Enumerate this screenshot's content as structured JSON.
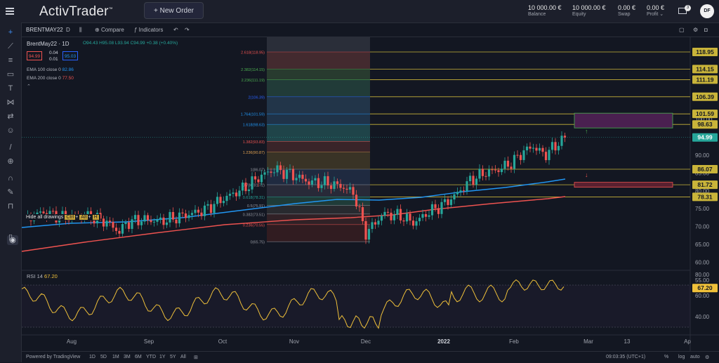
{
  "header": {
    "brand": "ActivTrader",
    "brand_tm": "™",
    "new_order": "+ New Order",
    "balance_value": "10 000.00 €",
    "balance_label": "Balance",
    "equity_value": "10 000.00 €",
    "equity_label": "Equity",
    "swap_value": "0.00 €",
    "swap_label": "Swap",
    "profit_value": "0.00 €",
    "profit_label": "Profit",
    "profit_caret": "⌄",
    "notif_count": "3",
    "avatar_initials": "DF"
  },
  "chartbar": {
    "symbol": "BRENTMAY22",
    "interval": "D",
    "compare": "Compare",
    "indicators": "Indicators"
  },
  "legend": {
    "title": "BrentMay22 · 1D",
    "ohlc": "O94.43 H95.08 L93.94 C94.99 +0.38 (+0.40%)",
    "sell_price": "94.99",
    "spread_top": "0.04",
    "spread_bottom": "0.01",
    "buy_price": "95.03",
    "ema100_label": "EMA 100 close 0",
    "ema100_value": "82.86",
    "ema200_label": "EMA 200 close 0",
    "ema200_value": "77.50",
    "ohlc_colors": {
      "up": "#26a69a",
      "down": "#ef5350",
      "neutral": "#b2b5be"
    }
  },
  "tooltip": {
    "text": "Hide all drawings",
    "keys": [
      "Ctrl",
      "Alt",
      "H"
    ]
  },
  "price_labels": [
    "118.95",
    "114.15",
    "111.19",
    "106.39",
    "101.59",
    "98.63",
    "94.99",
    "86.07",
    "81.72",
    "78.31"
  ],
  "fib_levels": [
    {
      "label": "2.618(118.95)",
      "value": 118.95,
      "color": "#ef5350"
    },
    {
      "label": "2.382(114.15)",
      "value": 114.15,
      "color": "#4caf50"
    },
    {
      "label": "2.236(111.19)",
      "value": 111.19,
      "color": "#4caf50"
    },
    {
      "label": "2(106.39)",
      "value": 106.39,
      "color": "#2962ff"
    },
    {
      "label": "1.764(101.59)",
      "value": 101.59,
      "color": "#2196f3"
    },
    {
      "label": "1.618(98.63)",
      "value": 98.63,
      "color": "#2196f3"
    },
    {
      "label": "1.382(93.83)",
      "value": 93.83,
      "color": "#ef5350"
    },
    {
      "label": "1.236(90.87)",
      "value": 90.87,
      "color": "#e0a050"
    },
    {
      "label": "1(86.07)",
      "value": 86.07,
      "color": "#9598a1"
    },
    {
      "label": "0.786(81.72)",
      "value": 81.72,
      "color": "#9598a1"
    },
    {
      "label": "0.618(78.31)",
      "value": 78.31,
      "color": "#26a69a"
    },
    {
      "label": "0.5(75.91)",
      "value": 75.91,
      "color": "#9598a1"
    },
    {
      "label": "0.382(73.51)",
      "value": 73.51,
      "color": "#9598a1"
    },
    {
      "label": "0.236(70.55)",
      "value": 70.55,
      "color": "#ef5350"
    },
    {
      "label": "0(65.75)",
      "value": 65.75,
      "color": "#9598a1"
    }
  ],
  "price_axis": [
    "100.00",
    "90.00",
    "85.00",
    "80.00",
    "75.00",
    "70.00",
    "65.00",
    "60.00",
    "55.00"
  ],
  "rsi": {
    "label": "RSI 14",
    "value": "67.20",
    "axis": [
      "80.00",
      "60.00",
      "40.00"
    ]
  },
  "time_axis": [
    "Aug",
    "Sep",
    "Oct",
    "Nov",
    "Dec",
    "2022",
    "Feb",
    "Mar",
    "13",
    "Ap"
  ],
  "bottombar": {
    "powered": "Powered by TradingView",
    "ranges": [
      "1D",
      "5D",
      "1M",
      "3M",
      "6M",
      "YTD",
      "1Y",
      "5Y",
      "All"
    ],
    "clock": "09:03:35 (UTC+1)",
    "pct": "%",
    "log": "log",
    "auto": "auto"
  }
}
